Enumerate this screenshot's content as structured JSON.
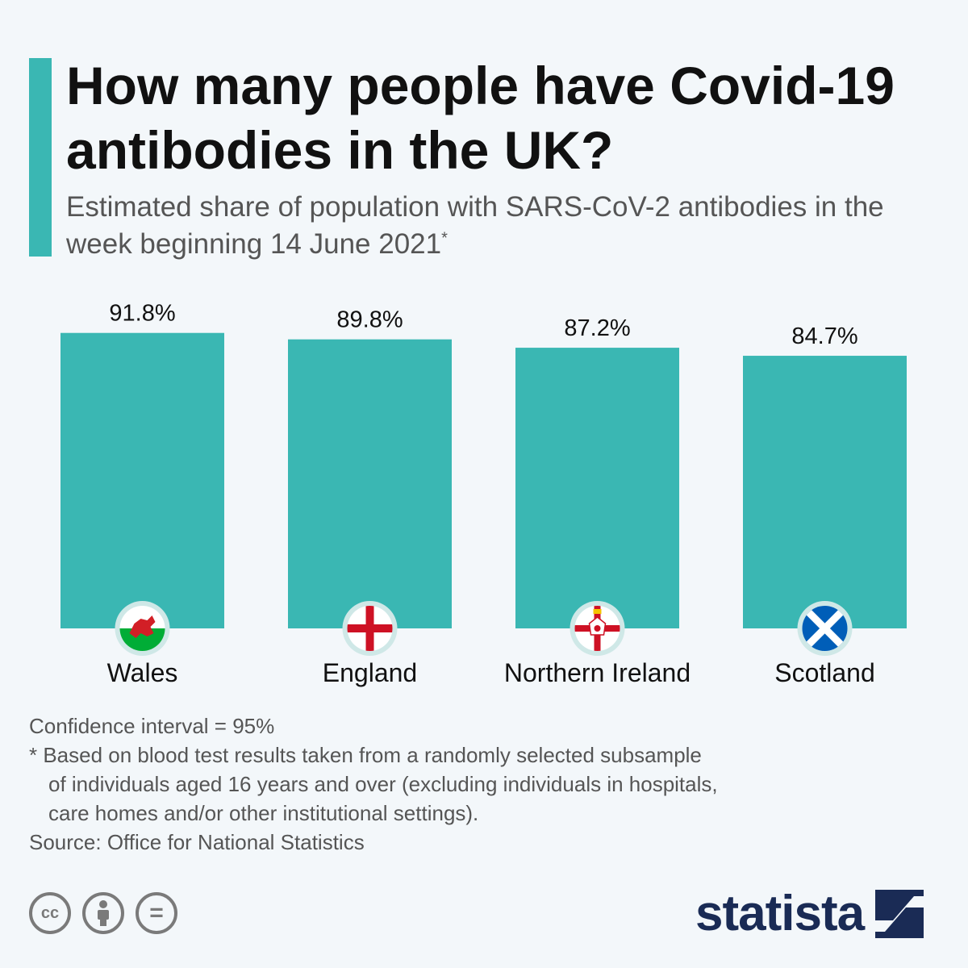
{
  "header": {
    "title": "How many people have Covid-19 antibodies in the UK?",
    "subtitle": "Estimated share of population with SARS-CoV-2 antibodies in the week beginning 14 June 2021",
    "subtitle_marker": "*"
  },
  "chart_data": {
    "type": "bar",
    "title": "How many people have Covid-19 antibodies in the UK?",
    "categories": [
      "Wales",
      "England",
      "Northern Ireland",
      "Scotland"
    ],
    "values": [
      91.8,
      89.8,
      87.2,
      84.7
    ],
    "value_labels": [
      "91.8%",
      "89.8%",
      "87.2%",
      "84.7%"
    ],
    "unit": "%",
    "flags": [
      "wales-flag-icon",
      "england-flag-icon",
      "northern-ireland-flag-icon",
      "scotland-flag-icon"
    ],
    "bar_color": "#3ab7b3",
    "grid": false,
    "legend": "none"
  },
  "notes": {
    "confidence": "Confidence interval = 95%",
    "footnote": "* Based on blood test results taken from a randomly selected subsample\nof individuals aged 16 years and over (excluding individuals in hospitals,\ncare homes and/or other institutional settings).",
    "source": "Source: Office for National Statistics"
  },
  "footer": {
    "license_icons": [
      "cc-icon",
      "by-icon",
      "nd-icon"
    ],
    "cc_text": "cc",
    "nd_text": "=",
    "logo_text": "statista"
  },
  "colors": {
    "accent": "#3ab7b3",
    "brand": "#1a2b55"
  }
}
